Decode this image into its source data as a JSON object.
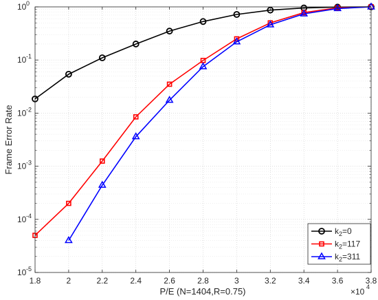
{
  "chart_data": {
    "type": "line",
    "xlabel": "P/E (N=1404,R=0.75)",
    "ylabel": "Frame Error Rate",
    "x_scale_note": "×10",
    "x_scale_exp": "4",
    "xlim": [
      1.8,
      3.8
    ],
    "ylim": [
      1e-05,
      1
    ],
    "y_scale": "log",
    "x_ticks": [
      {
        "value": 1.8,
        "label": "1.8"
      },
      {
        "value": 2.0,
        "label": "2"
      },
      {
        "value": 2.2,
        "label": "2.2"
      },
      {
        "value": 2.4,
        "label": "2.4"
      },
      {
        "value": 2.6,
        "label": "2.6"
      },
      {
        "value": 2.8,
        "label": "2.8"
      },
      {
        "value": 3.0,
        "label": "3"
      },
      {
        "value": 3.2,
        "label": "3.2"
      },
      {
        "value": 3.4,
        "label": "3.4"
      },
      {
        "value": 3.6,
        "label": "3.6"
      },
      {
        "value": 3.8,
        "label": "3.8"
      }
    ],
    "y_ticks": [
      {
        "exp": 0,
        "base": "10",
        "sup": "0"
      },
      {
        "exp": -1,
        "base": "10",
        "sup": "-1"
      },
      {
        "exp": -2,
        "base": "10",
        "sup": "-2"
      },
      {
        "exp": -3,
        "base": "10",
        "sup": "-3"
      },
      {
        "exp": -4,
        "base": "10",
        "sup": "-4"
      },
      {
        "exp": -5,
        "base": "10",
        "sup": "-5"
      }
    ],
    "grid": true,
    "legend_position": "bottom-right",
    "series": [
      {
        "legend_main": "k",
        "legend_sub": "2",
        "legend_rest": "=0",
        "color": "#000000",
        "marker": "circle",
        "x": [
          1.8,
          2.0,
          2.2,
          2.4,
          2.6,
          2.8,
          3.0,
          3.2,
          3.4,
          3.6,
          3.8
        ],
        "y": [
          0.0185,
          0.054,
          0.11,
          0.2,
          0.35,
          0.53,
          0.72,
          0.87,
          0.955,
          0.99,
          1.0
        ]
      },
      {
        "legend_main": "k",
        "legend_sub": "2",
        "legend_rest": "=117",
        "color": "#ff0000",
        "marker": "square",
        "x": [
          1.8,
          2.0,
          2.2,
          2.4,
          2.6,
          2.8,
          3.0,
          3.2,
          3.4,
          3.6,
          3.8
        ],
        "y": [
          5e-05,
          0.0002,
          0.00125,
          0.0085,
          0.035,
          0.098,
          0.25,
          0.5,
          0.78,
          0.96,
          1.0
        ]
      },
      {
        "legend_main": "k",
        "legend_sub": "2",
        "legend_rest": "=311",
        "color": "#0000ff",
        "marker": "triangle",
        "x": [
          2.0,
          2.2,
          2.4,
          2.6,
          2.8,
          3.0,
          3.2,
          3.4,
          3.6,
          3.8
        ],
        "y": [
          4e-05,
          0.00044,
          0.0036,
          0.0175,
          0.075,
          0.22,
          0.46,
          0.74,
          0.93,
          1.0
        ]
      }
    ]
  }
}
